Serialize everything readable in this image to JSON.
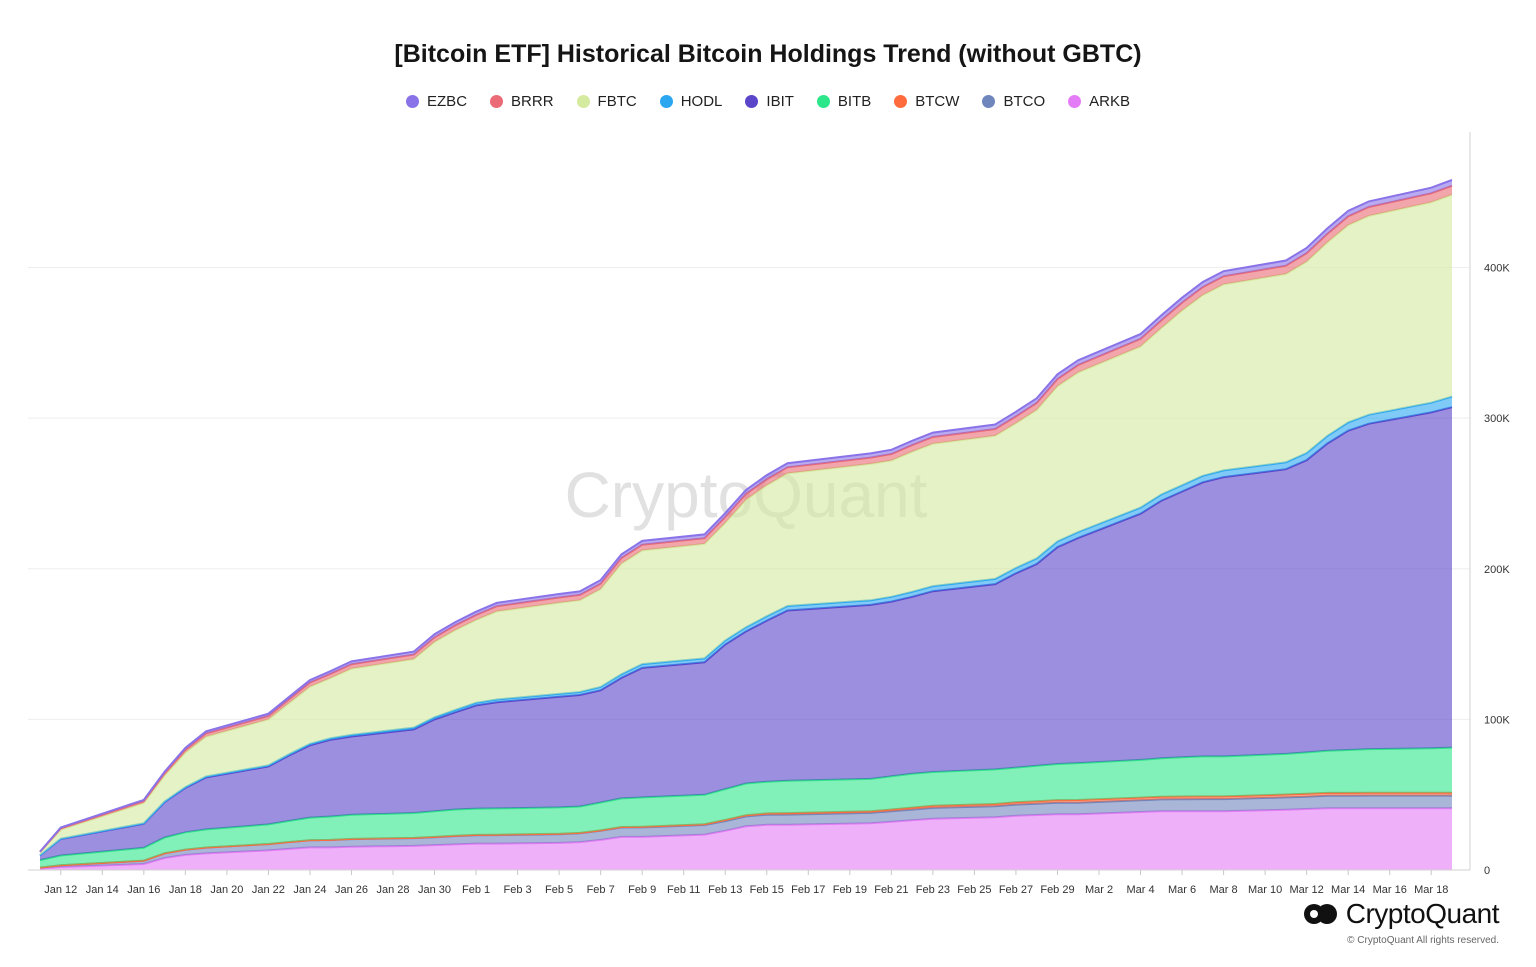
{
  "title": "[Bitcoin ETF] Historical Bitcoin Holdings Trend (without GBTC)",
  "brand": {
    "name": "CryptoQuant",
    "watermark": "CryptoQuant",
    "copyright": "© CryptoQuant All rights reserved."
  },
  "chart_data": {
    "type": "area",
    "stacked": true,
    "title": "[Bitcoin ETF] Historical Bitcoin Holdings Trend (without GBTC)",
    "xlabel": "",
    "ylabel": "",
    "y_axis_position": "right",
    "ylim": [
      0,
      490000
    ],
    "y_ticks": [
      0,
      100000,
      200000,
      300000,
      400000
    ],
    "y_tick_labels": [
      "0",
      "100K",
      "200K",
      "300K",
      "400K"
    ],
    "grid": true,
    "legend_position": "top-center",
    "x": [
      "Jan 11",
      "Jan 12",
      "Jan 16",
      "Jan 17",
      "Jan 18",
      "Jan 19",
      "Jan 22",
      "Jan 23",
      "Jan 24",
      "Jan 25",
      "Jan 26",
      "Jan 29",
      "Jan 30",
      "Jan 31",
      "Feb 1",
      "Feb 2",
      "Feb 5",
      "Feb 6",
      "Feb 7",
      "Feb 8",
      "Feb 9",
      "Feb 12",
      "Feb 13",
      "Feb 14",
      "Feb 15",
      "Feb 16",
      "Feb 20",
      "Feb 21",
      "Feb 22",
      "Feb 23",
      "Feb 26",
      "Feb 27",
      "Feb 28",
      "Feb 29",
      "Mar 1",
      "Mar 4",
      "Mar 5",
      "Mar 6",
      "Mar 7",
      "Mar 8",
      "Mar 11",
      "Mar 12",
      "Mar 13",
      "Mar 14",
      "Mar 15",
      "Mar 18",
      "Mar 19"
    ],
    "x_tick_labels": [
      "Jan 12",
      "Jan 14",
      "Jan 16",
      "Jan 18",
      "Jan 20",
      "Jan 22",
      "Jan 24",
      "Jan 26",
      "Jan 28",
      "Jan 30",
      "Feb 1",
      "Feb 3",
      "Feb 5",
      "Feb 7",
      "Feb 9",
      "Feb 11",
      "Feb 13",
      "Feb 15",
      "Feb 17",
      "Feb 19",
      "Feb 21",
      "Feb 23",
      "Feb 25",
      "Feb 27",
      "Feb 29",
      "Mar 2",
      "Mar 4",
      "Mar 6",
      "Mar 8",
      "Mar 10",
      "Mar 12",
      "Mar 14",
      "Mar 16",
      "Mar 18"
    ],
    "legend": [
      "EZBC",
      "BRRR",
      "FBTC",
      "HODL",
      "IBIT",
      "BITB",
      "BTCW",
      "BTCO",
      "ARKB"
    ],
    "series": [
      {
        "name": "ARKB",
        "color": "#e57cf7",
        "values": [
          1000,
          2000,
          4000,
          8000,
          10000,
          11000,
          13000,
          14000,
          15000,
          15000,
          15500,
          16000,
          16500,
          17000,
          17500,
          17500,
          18000,
          18500,
          20000,
          22000,
          22000,
          23500,
          26000,
          29000,
          30000,
          30000,
          31000,
          32000,
          33000,
          34000,
          35000,
          36000,
          36500,
          37000,
          37000,
          38500,
          39000,
          39000,
          39000,
          39000,
          40000,
          40500,
          41000,
          41000,
          41000,
          41000,
          41000
        ]
      },
      {
        "name": "BTCO",
        "color": "#6f86bd",
        "values": [
          600,
          1100,
          2200,
          3000,
          3500,
          3900,
          4200,
          4500,
          4700,
          4900,
          5000,
          5200,
          5300,
          5500,
          5600,
          5700,
          5800,
          5900,
          6000,
          6200,
          6300,
          6400,
          6500,
          6600,
          6700,
          6800,
          6900,
          7000,
          7100,
          7200,
          7300,
          7400,
          7500,
          7600,
          7700,
          7800,
          7900,
          8000,
          8100,
          8100,
          8200,
          8200,
          8300,
          8300,
          8400,
          8400,
          8400
        ]
      },
      {
        "name": "BTCW",
        "color": "#ff6b3d",
        "values": [
          0,
          0,
          50,
          60,
          60,
          70,
          80,
          90,
          100,
          110,
          120,
          140,
          160,
          180,
          200,
          220,
          240,
          260,
          300,
          350,
          400,
          500,
          700,
          800,
          900,
          1000,
          1100,
          1200,
          1300,
          1400,
          1500,
          1600,
          1700,
          1800,
          1800,
          1800,
          1800,
          1800,
          1800,
          1800,
          1900,
          1900,
          1900,
          1900,
          1900,
          1900,
          1900
        ]
      },
      {
        "name": "BITB",
        "color": "#2ee68a",
        "values": [
          5000,
          6500,
          8500,
          10500,
          11500,
          12000,
          13000,
          14000,
          15000,
          15500,
          16000,
          16500,
          17000,
          17500,
          17500,
          17500,
          17500,
          17500,
          18500,
          19000,
          19500,
          19500,
          20500,
          21000,
          21000,
          21500,
          21500,
          22000,
          22500,
          22500,
          23000,
          23000,
          23500,
          24000,
          24500,
          25000,
          25500,
          26000,
          26500,
          26500,
          27000,
          27500,
          28000,
          28500,
          29000,
          29500,
          30000
        ]
      },
      {
        "name": "IBIT",
        "color": "#5b45c9",
        "values": [
          3000,
          11000,
          16000,
          23500,
          29500,
          34500,
          38500,
          43500,
          48000,
          51000,
          52000,
          55500,
          61000,
          64500,
          68500,
          70500,
          73500,
          74000,
          74500,
          80000,
          86000,
          88000,
          96000,
          101000,
          107000,
          113000,
          115500,
          116000,
          117500,
          120000,
          123000,
          129000,
          134000,
          144000,
          149500,
          163500,
          171000,
          176500,
          182000,
          185500,
          189000,
          194000,
          204000,
          212000,
          216000,
          223000,
          226000
        ]
      },
      {
        "name": "HODL",
        "color": "#2aa7f0",
        "values": [
          100,
          200,
          300,
          400,
          500,
          600,
          700,
          800,
          900,
          1000,
          1100,
          1200,
          1400,
          1600,
          1700,
          1800,
          1900,
          2000,
          2200,
          2400,
          2500,
          2600,
          2700,
          2800,
          2900,
          3000,
          3100,
          3200,
          3300,
          3400,
          3500,
          3600,
          3700,
          3800,
          3900,
          4000,
          4100,
          4200,
          4300,
          4400,
          4600,
          4800,
          5000,
          5500,
          6000,
          6500,
          7000
        ]
      },
      {
        "name": "FBTC",
        "color": "#d4ea9e",
        "values": [
          2000,
          6000,
          13500,
          17300,
          23000,
          26500,
          30500,
          34000,
          38000,
          40000,
          44000,
          45500,
          50000,
          53000,
          55000,
          58500,
          60500,
          61000,
          65000,
          73500,
          75500,
          76000,
          78000,
          84500,
          87000,
          88000,
          90500,
          90500,
          93000,
          94500,
          95000,
          96000,
          98500,
          103000,
          106000,
          107000,
          110500,
          116000,
          120000,
          123500,
          125000,
          127000,
          128500,
          131000,
          132000,
          133000,
          134000
        ]
      },
      {
        "name": "BRRR",
        "color": "#ea6a75",
        "values": [
          300,
          900,
          1200,
          1500,
          1800,
          2100,
          2300,
          2500,
          2700,
          2800,
          2900,
          3000,
          3100,
          3200,
          3300,
          3400,
          3500,
          3500,
          3600,
          3700,
          3800,
          3800,
          3900,
          4000,
          4000,
          4100,
          4200,
          4300,
          4400,
          4500,
          4500,
          4600,
          4700,
          4800,
          4900,
          5000,
          5100,
          5200,
          5300,
          5400,
          5500,
          5600,
          5700,
          5800,
          5900,
          6000,
          6000
        ]
      },
      {
        "name": "EZBC",
        "color": "#8a73e8",
        "values": [
          200,
          500,
          800,
          1000,
          1200,
          1400,
          1500,
          1600,
          1700,
          1800,
          1900,
          2000,
          2100,
          2100,
          2200,
          2200,
          2300,
          2300,
          2400,
          2400,
          2500,
          2500,
          2600,
          2600,
          2700,
          2700,
          2800,
          2800,
          2900,
          2900,
          3000,
          3000,
          3100,
          3100,
          3200,
          3200,
          3300,
          3300,
          3400,
          3400,
          3500,
          3500,
          3600,
          3600,
          3700,
          3700,
          3800
        ]
      }
    ]
  }
}
